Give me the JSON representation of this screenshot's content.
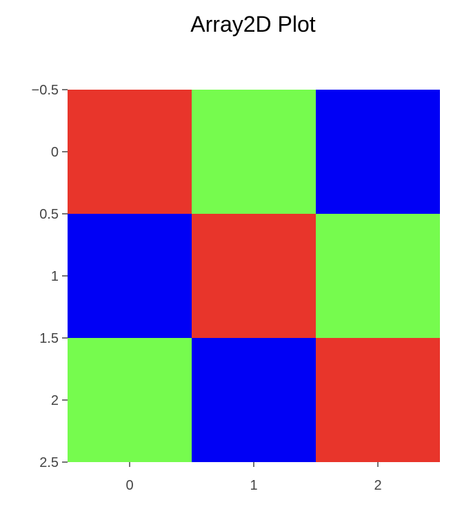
{
  "chart_data": {
    "type": "heatmap",
    "title": "Array2D Plot",
    "xlabel": "",
    "ylabel": "",
    "x": [
      0,
      1,
      2
    ],
    "y": [
      0,
      1,
      2
    ],
    "xlim": [
      -0.5,
      2.5
    ],
    "ylim": [
      -0.5,
      2.5
    ],
    "y_axis_reversed": true,
    "x_ticks": [
      "0",
      "1",
      "2"
    ],
    "y_ticks": [
      "−0.5",
      "0",
      "0.5",
      "1",
      "1.5",
      "2",
      "2.5"
    ],
    "y_tick_values": [
      -0.5,
      0,
      0.5,
      1,
      1.5,
      2,
      2.5
    ],
    "grid": false,
    "legend": "none",
    "cells": [
      [
        "#e8352b",
        "#76fb4e",
        "#0000f5"
      ],
      [
        "#0000f5",
        "#e8352b",
        "#76fb4e"
      ],
      [
        "#76fb4e",
        "#0000f5",
        "#e8352b"
      ]
    ]
  }
}
